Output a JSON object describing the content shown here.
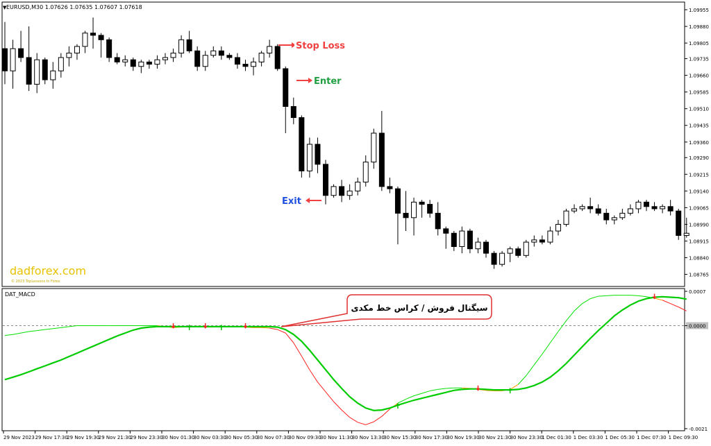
{
  "window": {
    "symbol_header": "EURUSD,M30  1.07626 1.07635 1.07607 1.07618",
    "indicator_name": "DAT_MACD",
    "watermark": "dadforex.com",
    "watermark_sub": "© 2023 TopLessons In Forex"
  },
  "annotations": {
    "stop_loss": "Stop Loss",
    "enter": "Enter",
    "exit": "Exit",
    "callout": "سیگنال فروش / کراس خط مکدی"
  },
  "colors": {
    "bull_body": "#ffffff",
    "bear_body": "#000000",
    "macd_fast": "#00cc00",
    "signal_up": "#00e000",
    "signal_down": "#ff2020",
    "signal_mix": "#ff9900",
    "stop_loss_bg": "#f04040",
    "enter_bg": "#20a040",
    "exit_bg": "#2050e0",
    "callout_border": "#e03030"
  },
  "chart_data": [
    {
      "type": "candlestick",
      "title": "EURUSD,M30",
      "ylim": [
        1.0872,
        1.0998
      ],
      "y_ticks": [
        "1.09955",
        "1.09880",
        "1.09805",
        "1.09735",
        "1.09660",
        "1.09585",
        "1.09510",
        "1.09435",
        "1.09360",
        "1.09290",
        "1.09215",
        "1.09140",
        "1.09065",
        "1.08990",
        "1.08915",
        "1.08840",
        "1.08765"
      ],
      "x_ticks": [
        "29 Nov 2023",
        "29 Nov 17:30",
        "29 Nov 19:30",
        "29 Nov 21:30",
        "29 Nov 23:30",
        "30 Nov 01:30",
        "30 Nov 03:30",
        "30 Nov 05:30",
        "30 Nov 07:30",
        "30 Nov 09:30",
        "30 Nov 11:30",
        "30 Nov 13:30",
        "30 Nov 15:30",
        "30 Nov 17:30",
        "30 Nov 19:30",
        "30 Nov 21:30",
        "30 Nov 23:30",
        "1 Dec 01:30",
        "1 Dec 03:30",
        "1 Dec 05:30",
        "1 Dec 07:30",
        "1 Dec 09:30"
      ],
      "candles": [
        [
          1.0978,
          1.099,
          1.0962,
          1.0968
        ],
        [
          1.0968,
          1.0982,
          1.096,
          1.0978
        ],
        [
          1.0978,
          1.0986,
          1.0972,
          1.0974
        ],
        [
          1.0974,
          1.0988,
          1.0959,
          1.0962
        ],
        [
          1.0962,
          1.0976,
          1.0958,
          1.0973
        ],
        [
          1.0973,
          1.0974,
          1.0962,
          1.0964
        ],
        [
          1.0964,
          1.0972,
          1.096,
          1.0968
        ],
        [
          1.0968,
          1.0976,
          1.0965,
          1.0974
        ],
        [
          1.0974,
          1.0979,
          1.097,
          1.0976
        ],
        [
          1.0976,
          1.098,
          1.0973,
          1.0979
        ],
        [
          1.0979,
          1.0986,
          1.0976,
          1.0985
        ],
        [
          1.0985,
          1.0992,
          1.0978,
          1.0984
        ],
        [
          1.0984,
          1.0985,
          1.0974,
          1.0982
        ],
        [
          1.0982,
          1.0983,
          1.0972,
          1.0974
        ],
        [
          1.0974,
          1.0976,
          1.0971,
          1.0972
        ],
        [
          1.0972,
          1.0975,
          1.097,
          1.0973
        ],
        [
          1.0973,
          1.0974,
          1.0968,
          1.097
        ],
        [
          1.097,
          1.0973,
          1.0967,
          1.0972
        ],
        [
          1.0972,
          1.0973,
          1.0969,
          1.0971
        ],
        [
          1.0971,
          1.0975,
          1.0969,
          1.0973
        ],
        [
          1.0973,
          1.0976,
          1.0971,
          1.0974
        ],
        [
          1.0974,
          1.0978,
          1.0972,
          1.0976
        ],
        [
          1.0976,
          1.0984,
          1.0974,
          1.0982
        ],
        [
          1.0982,
          1.0986,
          1.0976,
          1.0977
        ],
        [
          1.0977,
          1.0979,
          1.0968,
          1.097
        ],
        [
          1.097,
          1.0977,
          1.0968,
          1.0975
        ],
        [
          1.0975,
          1.0979,
          1.0974,
          1.0977
        ],
        [
          1.0977,
          1.0979,
          1.0973,
          1.0975
        ],
        [
          1.0975,
          1.0976,
          1.0973,
          1.0974
        ],
        [
          1.0974,
          1.0976,
          1.0969,
          1.0971
        ],
        [
          1.0971,
          1.0973,
          1.0968,
          1.097
        ],
        [
          1.097,
          1.0974,
          1.0966,
          1.0972
        ],
        [
          1.0972,
          1.0977,
          1.097,
          1.0976
        ],
        [
          1.0976,
          1.0982,
          1.0974,
          1.0979
        ],
        [
          1.0979,
          1.098,
          1.0968,
          1.0969
        ],
        [
          1.0969,
          1.097,
          1.094,
          1.0952
        ],
        [
          1.0952,
          1.0956,
          1.0944,
          1.0947
        ],
        [
          1.0947,
          1.0948,
          1.092,
          1.0923
        ],
        [
          1.0923,
          1.0938,
          1.092,
          1.0935
        ],
        [
          1.0935,
          1.0938,
          1.0922,
          1.0926
        ],
        [
          1.0926,
          1.0928,
          1.0908,
          1.0912
        ],
        [
          1.0912,
          1.0917,
          1.0911,
          1.0916
        ],
        [
          1.0916,
          1.0919,
          1.0909,
          1.0912
        ],
        [
          1.0912,
          1.0917,
          1.091,
          1.0914
        ],
        [
          1.0914,
          1.092,
          1.0912,
          1.0918
        ],
        [
          1.0918,
          1.093,
          1.0916,
          1.0927
        ],
        [
          1.0927,
          1.0942,
          1.0924,
          1.094
        ],
        [
          1.094,
          1.095,
          1.0914,
          1.0916
        ],
        [
          1.0916,
          1.092,
          1.0913,
          1.0915
        ],
        [
          1.0915,
          1.0916,
          1.089,
          1.0904
        ],
        [
          1.0904,
          1.0914,
          1.0896,
          1.0902
        ],
        [
          1.0902,
          1.0911,
          1.0894,
          1.0909
        ],
        [
          1.0909,
          1.091,
          1.0902,
          1.0908
        ],
        [
          1.0908,
          1.091,
          1.0902,
          1.0904
        ],
        [
          1.0904,
          1.0909,
          1.0894,
          1.0897
        ],
        [
          1.0897,
          1.0898,
          1.0888,
          1.0895
        ],
        [
          1.0895,
          1.0896,
          1.0887,
          1.0889
        ],
        [
          1.0889,
          1.0898,
          1.0886,
          1.0896
        ],
        [
          1.0896,
          1.0897,
          1.0886,
          1.0888
        ],
        [
          1.0888,
          1.0893,
          1.0886,
          1.0891
        ],
        [
          1.0891,
          1.0892,
          1.0884,
          1.0886
        ],
        [
          1.0886,
          1.0887,
          1.0879,
          1.0881
        ],
        [
          1.0881,
          1.0887,
          1.088,
          1.0886
        ],
        [
          1.0886,
          1.0889,
          1.0882,
          1.0888
        ],
        [
          1.0888,
          1.0889,
          1.0884,
          1.0885
        ],
        [
          1.0885,
          1.0892,
          1.0884,
          1.0891
        ],
        [
          1.0891,
          1.0894,
          1.0889,
          1.0892
        ],
        [
          1.0892,
          1.0894,
          1.089,
          1.0891
        ],
        [
          1.0891,
          1.0898,
          1.089,
          1.0896
        ],
        [
          1.0896,
          1.0901,
          1.0894,
          1.0899
        ],
        [
          1.0899,
          1.0906,
          1.0898,
          1.0905
        ],
        [
          1.0905,
          1.0908,
          1.0904,
          1.0906
        ],
        [
          1.0906,
          1.0908,
          1.0905,
          1.0907
        ],
        [
          1.0907,
          1.0911,
          1.0904,
          1.0906
        ],
        [
          1.0906,
          1.0908,
          1.0903,
          1.0904
        ],
        [
          1.0904,
          1.0906,
          1.0899,
          1.0901
        ],
        [
          1.0901,
          1.0903,
          1.0899,
          1.0902
        ],
        [
          1.0902,
          1.0906,
          1.0901,
          1.0904
        ],
        [
          1.0904,
          1.0908,
          1.0903,
          1.0906
        ],
        [
          1.0906,
          1.091,
          1.0904,
          1.0909
        ],
        [
          1.0909,
          1.091,
          1.0905,
          1.0907
        ],
        [
          1.0907,
          1.0909,
          1.0905,
          1.0906
        ],
        [
          1.0906,
          1.0908,
          1.0904,
          1.0907
        ],
        [
          1.0907,
          1.091,
          1.0903,
          1.0905
        ],
        [
          1.0905,
          1.0906,
          1.0892,
          1.0894
        ],
        [
          1.0894,
          1.0902,
          1.0893,
          1.0895
        ]
      ]
    },
    {
      "type": "line",
      "title": "DAT_MACD",
      "ylim": [
        -0.0021,
        0.0007
      ],
      "y_ticks": [
        "0.0007",
        "0.0000",
        "-0.0021"
      ],
      "series": [
        {
          "name": "",
          "color_key": "macd_fast",
          "values": [
            -0.0002,
            -0.00018,
            -0.00015,
            -0.00012,
            -0.0001,
            -8e-05,
            -6e-05,
            -4e-05,
            -2e-05,
            0.0,
            0.0,
            0.0,
            0.0,
            0.0,
            0.0,
            0.0,
            0.0,
            0.0,
            0.0,
            0.0,
            -2e-05,
            -4e-05,
            -3e-05,
            -2e-05,
            -1e-05,
            -3e-05,
            -3e-05,
            -2e-05,
            -2e-05,
            -2e-05,
            -3e-05,
            -4e-05,
            -4e-05,
            -5e-05,
            -8e-05,
            -0.00015,
            -0.00035,
            -0.00062,
            -0.0009,
            -0.00115,
            -0.00135,
            -0.00155,
            -0.00172,
            -0.00187,
            -0.00197,
            -0.00202,
            -0.00196,
            -0.00185,
            -0.0017,
            -0.00158,
            -0.0015,
            -0.00143,
            -0.00138,
            -0.00133,
            -0.0013,
            -0.00128,
            -0.00127,
            -0.00127,
            -0.00128,
            -0.0013,
            -0.00132,
            -0.00133,
            -0.00133,
            -0.0013,
            -0.0012,
            -0.00102,
            -0.0008,
            -0.00058,
            -0.00035,
            -0.00012,
            0.0001,
            0.0003,
            0.00045,
            0.00055,
            0.0006,
            0.00061,
            0.00062,
            0.00062,
            0.00062,
            0.00061,
            0.00059,
            0.00056,
            0.00052,
            0.00045,
            0.00038,
            0.0003
          ]
        },
        {
          "name": "",
          "color_key": "signal_up",
          "values": [
            -0.0011,
            -0.00105,
            -0.001,
            -0.00094,
            -0.00088,
            -0.00082,
            -0.00076,
            -0.0007,
            -0.00063,
            -0.00056,
            -0.00049,
            -0.00042,
            -0.00035,
            -0.00028,
            -0.00021,
            -0.00015,
            -9e-05,
            -5e-05,
            -3e-05,
            -2e-05,
            -2e-05,
            -2e-05,
            -2e-05,
            -2e-05,
            -2e-05,
            -2e-05,
            -2e-05,
            -2e-05,
            -2e-05,
            -2e-05,
            -2e-05,
            -2e-05,
            -2e-05,
            -2e-05,
            -3e-05,
            -8e-05,
            -0.00018,
            -0.00032,
            -0.0005,
            -0.0007,
            -0.0009,
            -0.0011,
            -0.00128,
            -0.00145,
            -0.00158,
            -0.00168,
            -0.00173,
            -0.00172,
            -0.00168,
            -0.00162,
            -0.00157,
            -0.00152,
            -0.00148,
            -0.00144,
            -0.0014,
            -0.00136,
            -0.00132,
            -0.0013,
            -0.00129,
            -0.00129,
            -0.0013,
            -0.00131,
            -0.00131,
            -0.00131,
            -0.0013,
            -0.00127,
            -0.00122,
            -0.00115,
            -0.00105,
            -0.00092,
            -0.00077,
            -0.0006,
            -0.00043,
            -0.00026,
            -0.0001,
            5e-05,
            0.0002,
            0.00032,
            0.00042,
            0.0005,
            0.00055,
            0.00058,
            0.00059,
            0.00058,
            0.00057,
            0.00054
          ]
        }
      ]
    }
  ]
}
